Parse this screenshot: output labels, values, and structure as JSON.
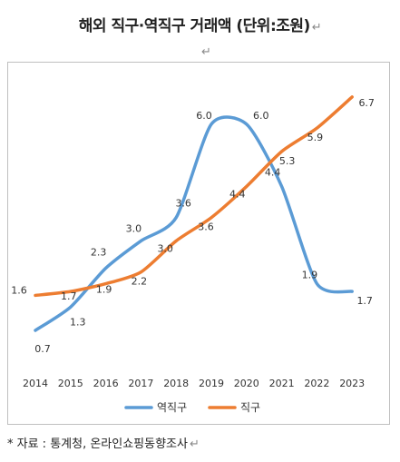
{
  "title": "해외 직구·역직구 거래액 (단위:조원)",
  "return_mark": "↵",
  "source_note": "* 자료 : 통계청, 온라인쇼핑동향조사",
  "chart_data": {
    "type": "line",
    "title": "해외 직구·역직구 거래액 (단위:조원)",
    "x": [
      "2014",
      "2015",
      "2016",
      "2017",
      "2018",
      "2019",
      "2020",
      "2021",
      "2022",
      "2023"
    ],
    "series": [
      {
        "name": "역직구",
        "color": "#5b9bd5",
        "values": [
          0.7,
          1.3,
          2.3,
          3.0,
          3.6,
          6.0,
          6.0,
          4.4,
          1.9,
          1.7
        ],
        "labels": [
          "0.7",
          "1.3",
          "2.3",
          "3.0",
          "3.6",
          "6.0",
          "6.0",
          "4.4",
          "1.9",
          "1.7"
        ]
      },
      {
        "name": "직구",
        "color": "#ed7d31",
        "values": [
          1.6,
          1.7,
          1.9,
          2.2,
          3.0,
          3.6,
          4.4,
          5.3,
          5.9,
          6.7
        ],
        "labels": [
          "1.6",
          "1.7",
          "1.9",
          "2.2",
          "3.0",
          "3.6",
          "4.4",
          "5.3",
          "5.9",
          "6.7"
        ]
      }
    ],
    "ylim": [
      0,
      7
    ],
    "grid": false,
    "legend_position": "bottom"
  }
}
